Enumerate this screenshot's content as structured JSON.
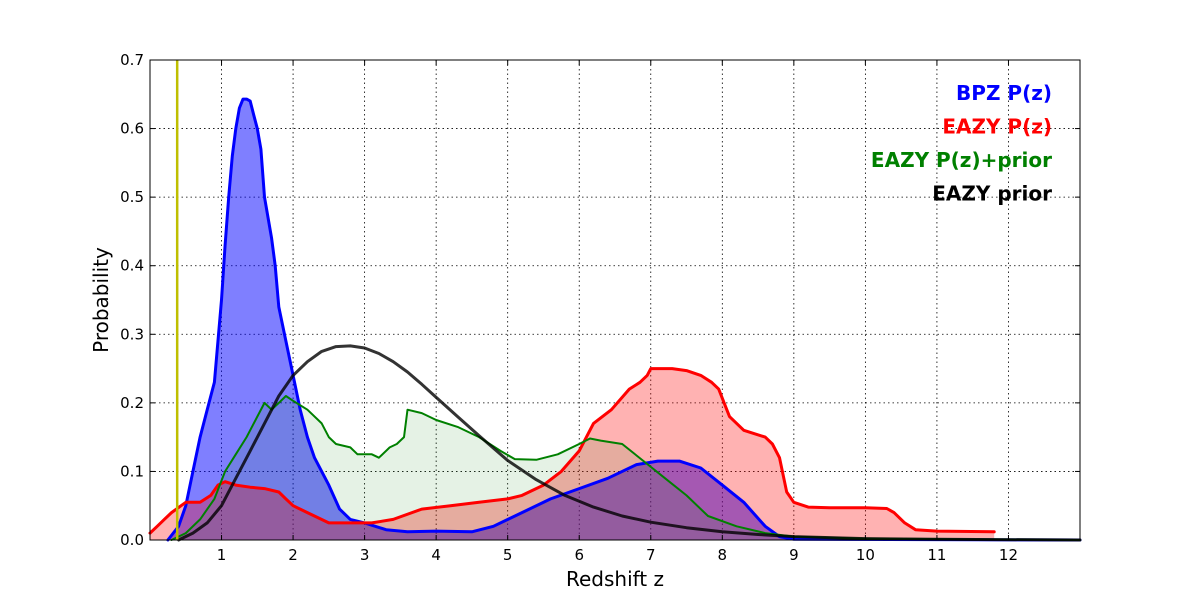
{
  "chart_data": {
    "type": "area",
    "xlabel": "Redshift z",
    "ylabel": "Probability",
    "xlim": [
      0,
      13
    ],
    "ylim": [
      0,
      0.7
    ],
    "x_ticks": [
      1,
      2,
      3,
      4,
      5,
      6,
      7,
      8,
      9,
      10,
      11,
      12
    ],
    "y_ticks": [
      0.0,
      0.1,
      0.2,
      0.3,
      0.4,
      0.5,
      0.6,
      0.7
    ],
    "grid": true,
    "legend_position": "top-right",
    "vertical_line": {
      "x": 0.38,
      "color": "#bfbf00"
    },
    "legend": [
      {
        "label": "BPZ P(z)",
        "color": "#0000ff"
      },
      {
        "label": "EAZY P(z)",
        "color": "#ff0000"
      },
      {
        "label": "EAZY P(z)+prior",
        "color": "#008000"
      },
      {
        "label": "EAZY prior",
        "color": "#000000"
      }
    ],
    "series": [
      {
        "key": "bpz",
        "color": "#0000ff",
        "fill_color": "#0000ff",
        "fill_opacity": 0.5,
        "line_width": 3,
        "points": [
          [
            0.25,
            0.0
          ],
          [
            0.4,
            0.02
          ],
          [
            0.5,
            0.05
          ],
          [
            0.6,
            0.1
          ],
          [
            0.7,
            0.15
          ],
          [
            0.8,
            0.19
          ],
          [
            0.9,
            0.23
          ],
          [
            1.0,
            0.35
          ],
          [
            1.05,
            0.43
          ],
          [
            1.1,
            0.5
          ],
          [
            1.15,
            0.56
          ],
          [
            1.2,
            0.6
          ],
          [
            1.25,
            0.63
          ],
          [
            1.3,
            0.643
          ],
          [
            1.35,
            0.643
          ],
          [
            1.4,
            0.64
          ],
          [
            1.45,
            0.62
          ],
          [
            1.5,
            0.6
          ],
          [
            1.55,
            0.57
          ],
          [
            1.6,
            0.5
          ],
          [
            1.7,
            0.44
          ],
          [
            1.75,
            0.4
          ],
          [
            1.8,
            0.34
          ],
          [
            1.9,
            0.29
          ],
          [
            2.0,
            0.24
          ],
          [
            2.1,
            0.19
          ],
          [
            2.2,
            0.15
          ],
          [
            2.3,
            0.12
          ],
          [
            2.5,
            0.08
          ],
          [
            2.65,
            0.045
          ],
          [
            2.8,
            0.03
          ],
          [
            3.0,
            0.025
          ],
          [
            3.3,
            0.015
          ],
          [
            3.6,
            0.012
          ],
          [
            4.0,
            0.013
          ],
          [
            4.5,
            0.012
          ],
          [
            4.8,
            0.02
          ],
          [
            5.2,
            0.04
          ],
          [
            5.6,
            0.06
          ],
          [
            6.0,
            0.075
          ],
          [
            6.4,
            0.09
          ],
          [
            6.8,
            0.11
          ],
          [
            7.1,
            0.115
          ],
          [
            7.4,
            0.115
          ],
          [
            7.7,
            0.105
          ],
          [
            8.0,
            0.08
          ],
          [
            8.3,
            0.055
          ],
          [
            8.6,
            0.02
          ],
          [
            8.8,
            0.005
          ],
          [
            9.0,
            0.001
          ],
          [
            13.0,
            0.0
          ]
        ]
      },
      {
        "key": "eazy",
        "color": "#ff0000",
        "fill_color": "#ff0000",
        "fill_opacity": 0.3,
        "line_width": 3,
        "points": [
          [
            0.0,
            0.01
          ],
          [
            0.1,
            0.02
          ],
          [
            0.2,
            0.03
          ],
          [
            0.3,
            0.04
          ],
          [
            0.5,
            0.055
          ],
          [
            0.7,
            0.055
          ],
          [
            0.85,
            0.065
          ],
          [
            0.95,
            0.08
          ],
          [
            1.05,
            0.085
          ],
          [
            1.2,
            0.08
          ],
          [
            1.4,
            0.077
          ],
          [
            1.6,
            0.075
          ],
          [
            1.8,
            0.07
          ],
          [
            1.9,
            0.06
          ],
          [
            2.0,
            0.05
          ],
          [
            2.2,
            0.04
          ],
          [
            2.5,
            0.025
          ],
          [
            2.8,
            0.025
          ],
          [
            3.1,
            0.025
          ],
          [
            3.4,
            0.03
          ],
          [
            3.8,
            0.045
          ],
          [
            4.2,
            0.05
          ],
          [
            4.6,
            0.055
          ],
          [
            5.0,
            0.06
          ],
          [
            5.2,
            0.065
          ],
          [
            5.5,
            0.08
          ],
          [
            5.75,
            0.1
          ],
          [
            6.0,
            0.13
          ],
          [
            6.2,
            0.17
          ],
          [
            6.45,
            0.19
          ],
          [
            6.7,
            0.22
          ],
          [
            6.85,
            0.23
          ],
          [
            6.95,
            0.24
          ],
          [
            7.0,
            0.25
          ],
          [
            7.3,
            0.25
          ],
          [
            7.5,
            0.247
          ],
          [
            7.7,
            0.24
          ],
          [
            7.85,
            0.23
          ],
          [
            7.95,
            0.22
          ],
          [
            8.1,
            0.18
          ],
          [
            8.3,
            0.16
          ],
          [
            8.6,
            0.15
          ],
          [
            8.7,
            0.14
          ],
          [
            8.8,
            0.12
          ],
          [
            8.9,
            0.07
          ],
          [
            9.0,
            0.055
          ],
          [
            9.2,
            0.048
          ],
          [
            9.5,
            0.047
          ],
          [
            10.0,
            0.047
          ],
          [
            10.3,
            0.046
          ],
          [
            10.4,
            0.04
          ],
          [
            10.55,
            0.025
          ],
          [
            10.7,
            0.015
          ],
          [
            11.0,
            0.013
          ],
          [
            11.8,
            0.012
          ]
        ]
      },
      {
        "key": "eazy_prior_combined",
        "color": "#008000",
        "fill_color": "#008000",
        "fill_opacity": 0.1,
        "line_width": 2,
        "points": [
          [
            0.3,
            0.0
          ],
          [
            0.5,
            0.01
          ],
          [
            0.7,
            0.03
          ],
          [
            0.9,
            0.06
          ],
          [
            1.05,
            0.1
          ],
          [
            1.2,
            0.125
          ],
          [
            1.35,
            0.15
          ],
          [
            1.5,
            0.18
          ],
          [
            1.6,
            0.2
          ],
          [
            1.7,
            0.19
          ],
          [
            1.8,
            0.2
          ],
          [
            1.9,
            0.21
          ],
          [
            2.0,
            0.203
          ],
          [
            2.2,
            0.19
          ],
          [
            2.4,
            0.17
          ],
          [
            2.5,
            0.15
          ],
          [
            2.6,
            0.14
          ],
          [
            2.8,
            0.135
          ],
          [
            2.9,
            0.125
          ],
          [
            3.1,
            0.125
          ],
          [
            3.2,
            0.12
          ],
          [
            3.35,
            0.135
          ],
          [
            3.45,
            0.14
          ],
          [
            3.55,
            0.15
          ],
          [
            3.6,
            0.19
          ],
          [
            3.8,
            0.185
          ],
          [
            4.0,
            0.175
          ],
          [
            4.3,
            0.165
          ],
          [
            4.6,
            0.15
          ],
          [
            4.9,
            0.13
          ],
          [
            5.1,
            0.118
          ],
          [
            5.4,
            0.117
          ],
          [
            5.7,
            0.125
          ],
          [
            6.0,
            0.14
          ],
          [
            6.15,
            0.148
          ],
          [
            6.3,
            0.145
          ],
          [
            6.6,
            0.14
          ],
          [
            6.9,
            0.115
          ],
          [
            7.2,
            0.09
          ],
          [
            7.5,
            0.065
          ],
          [
            7.8,
            0.035
          ],
          [
            8.2,
            0.02
          ],
          [
            8.6,
            0.01
          ],
          [
            9.0,
            0.005
          ],
          [
            10.0,
            0.002
          ],
          [
            13.0,
            0.0
          ]
        ]
      },
      {
        "key": "prior",
        "color": "#000000",
        "fill_color": null,
        "fill_opacity": 0,
        "line_width": 3,
        "points": [
          [
            0.4,
            0.0
          ],
          [
            0.6,
            0.01
          ],
          [
            0.8,
            0.025
          ],
          [
            1.0,
            0.05
          ],
          [
            1.2,
            0.09
          ],
          [
            1.4,
            0.13
          ],
          [
            1.6,
            0.17
          ],
          [
            1.8,
            0.21
          ],
          [
            2.0,
            0.24
          ],
          [
            2.2,
            0.26
          ],
          [
            2.4,
            0.275
          ],
          [
            2.6,
            0.282
          ],
          [
            2.8,
            0.283
          ],
          [
            3.0,
            0.28
          ],
          [
            3.2,
            0.272
          ],
          [
            3.4,
            0.26
          ],
          [
            3.6,
            0.245
          ],
          [
            3.8,
            0.227
          ],
          [
            4.0,
            0.208
          ],
          [
            4.3,
            0.18
          ],
          [
            4.6,
            0.152
          ],
          [
            5.0,
            0.116
          ],
          [
            5.4,
            0.088
          ],
          [
            5.8,
            0.065
          ],
          [
            6.2,
            0.048
          ],
          [
            6.6,
            0.035
          ],
          [
            7.0,
            0.026
          ],
          [
            7.5,
            0.018
          ],
          [
            8.0,
            0.012
          ],
          [
            8.5,
            0.008
          ],
          [
            9.0,
            0.005
          ],
          [
            10.0,
            0.002
          ],
          [
            11.0,
            0.001
          ],
          [
            13.0,
            0.0
          ]
        ]
      }
    ]
  }
}
